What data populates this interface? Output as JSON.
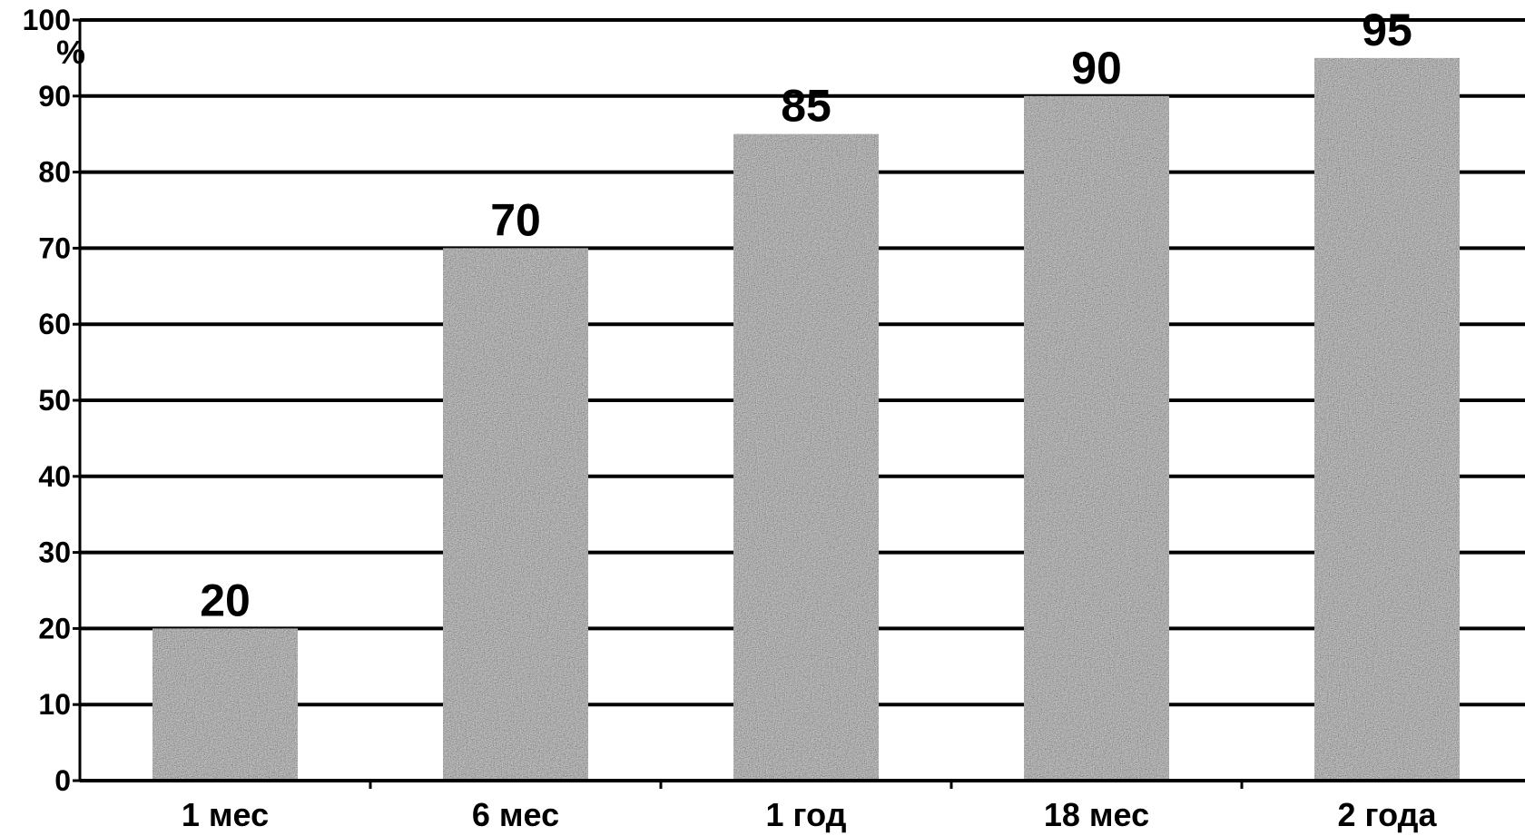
{
  "chart_data": {
    "type": "bar",
    "categories": [
      "1 мес",
      "6 мес",
      "1 год",
      "18 мес",
      "2 года"
    ],
    "values": [
      20,
      70,
      85,
      90,
      95
    ],
    "data_labels": [
      "20",
      "70",
      "85",
      "90",
      "95"
    ],
    "title": "",
    "xlabel": "",
    "ylabel": "%",
    "ylim": [
      0,
      100
    ],
    "yticks": [
      0,
      10,
      20,
      30,
      40,
      50,
      60,
      70,
      80,
      90,
      100
    ],
    "grid": true,
    "legend": "none",
    "bar_color": "#9a9a9a",
    "grid_color": "#000000"
  }
}
